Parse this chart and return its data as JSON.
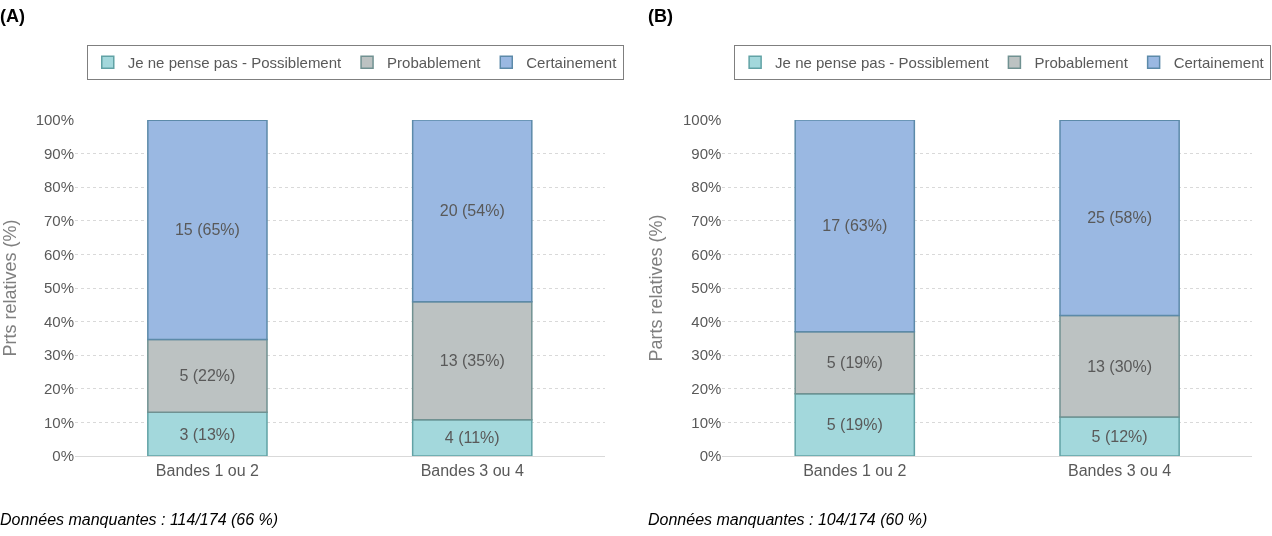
{
  "chart_data": [
    {
      "type": "bar",
      "title": "(A)",
      "ylabel": "Prts relatives (%)",
      "categories": [
        "Bandes 1 ou 2",
        "Bandes 3 ou 4"
      ],
      "stacked": true,
      "ylim": [
        0,
        100
      ],
      "yticks": [
        {
          "value": 0,
          "label": "0%"
        },
        {
          "value": 10,
          "label": "10%"
        },
        {
          "value": 20,
          "label": "20%"
        },
        {
          "value": 30,
          "label": "30%"
        },
        {
          "value": 40,
          "label": "40%"
        },
        {
          "value": 50,
          "label": "50%"
        },
        {
          "value": 60,
          "label": "60%"
        },
        {
          "value": 70,
          "label": "70%"
        },
        {
          "value": 80,
          "label": "80%"
        },
        {
          "value": 90,
          "label": "90%"
        },
        {
          "value": 100,
          "label": "100%"
        }
      ],
      "grid": "y",
      "legend": "top",
      "series": [
        {
          "name": "Je ne pense pas - Possiblement",
          "color": "#a3d8dc",
          "values": [
            13.0,
            10.8
          ],
          "value_labels": [
            "3 (13%)",
            "4 (11%)"
          ]
        },
        {
          "name": "Probablement",
          "color": "#bcc2c2",
          "values": [
            21.7,
            35.1
          ],
          "value_labels": [
            "5 (22%)",
            "13 (35%)"
          ]
        },
        {
          "name": "Certainement",
          "color": "#9ab8e2",
          "values": [
            65.2,
            54.1
          ],
          "value_labels": [
            "15 (65%)",
            "20 (54%)"
          ]
        }
      ],
      "annotations": [
        "Données manquantes : 114/174 (66 %)"
      ]
    },
    {
      "type": "bar",
      "title": "(B)",
      "ylabel": "Parts relatives (%)",
      "categories": [
        "Bandes 1 ou 2",
        "Bandes 3 ou 4"
      ],
      "stacked": true,
      "ylim": [
        0,
        100
      ],
      "yticks": [
        {
          "value": 0,
          "label": "0%"
        },
        {
          "value": 10,
          "label": "10%"
        },
        {
          "value": 20,
          "label": "20%"
        },
        {
          "value": 30,
          "label": "30%"
        },
        {
          "value": 40,
          "label": "40%"
        },
        {
          "value": 50,
          "label": "50%"
        },
        {
          "value": 60,
          "label": "60%"
        },
        {
          "value": 70,
          "label": "70%"
        },
        {
          "value": 80,
          "label": "80%"
        },
        {
          "value": 90,
          "label": "90%"
        },
        {
          "value": 100,
          "label": "100%"
        }
      ],
      "grid": "y",
      "legend": "top",
      "series": [
        {
          "name": "Je ne pense pas - Possiblement",
          "color": "#a3d8dc",
          "values": [
            18.5,
            11.6
          ],
          "value_labels": [
            "5 (19%)",
            "5 (12%)"
          ]
        },
        {
          "name": "Probablement",
          "color": "#bcc2c2",
          "values": [
            18.5,
            30.2
          ],
          "value_labels": [
            "5 (19%)",
            "13 (30%)"
          ]
        },
        {
          "name": "Certainement",
          "color": "#9ab8e2",
          "values": [
            63.0,
            58.1
          ],
          "value_labels": [
            "17 (63%)",
            "25 (58%)"
          ]
        }
      ],
      "annotations": [
        "Données manquantes : 104/174 (60 %)"
      ]
    }
  ]
}
